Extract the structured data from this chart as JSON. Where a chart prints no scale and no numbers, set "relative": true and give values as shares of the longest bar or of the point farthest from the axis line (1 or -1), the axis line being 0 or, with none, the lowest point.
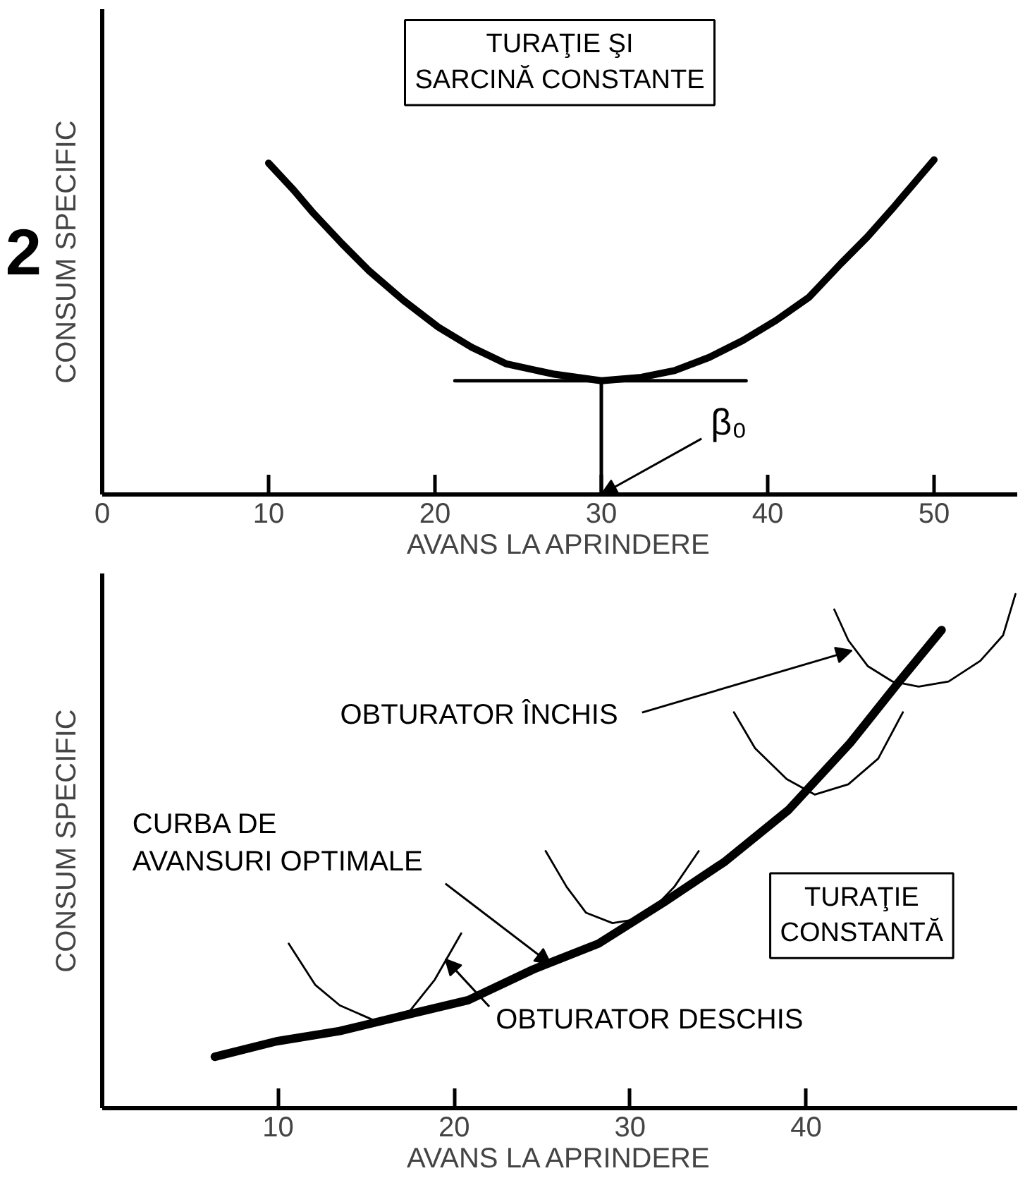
{
  "chart_data": [
    {
      "type": "line",
      "title": "TURAŢIE ŞI\nSARCINĂ CONSTANTE",
      "xlabel": "AVANS LA APRINDERE",
      "ylabel": "CONSUM SPECIFIC",
      "relative": true,
      "xlim": [
        0,
        55
      ],
      "xticks": [
        0,
        10,
        20,
        30,
        40,
        50
      ],
      "annotations": [
        "2"
      ],
      "ref_lines": [
        {
          "axis": "x",
          "value": 30,
          "label": "β₀"
        }
      ],
      "series": [
        {
          "color": "#000000",
          "x": [
            10,
            11.5,
            12.7,
            14.4,
            16,
            18.1,
            20.2,
            22.2,
            24.3,
            27.1,
            30,
            32.4,
            34.4,
            36.5,
            38.5,
            40.5,
            42.5,
            44.4,
            46,
            47.6,
            48.8,
            50
          ],
          "values": [
            0.99,
            0.91,
            0.84,
            0.75,
            0.67,
            0.58,
            0.5,
            0.44,
            0.39,
            0.36,
            0.34,
            0.35,
            0.37,
            0.41,
            0.46,
            0.52,
            0.59,
            0.69,
            0.77,
            0.86,
            0.93,
            1.0
          ]
        },
        {
          "color": "#000000",
          "x": [
            21.2,
            38.7
          ],
          "values": [
            0.34,
            0.34
          ]
        }
      ]
    },
    {
      "type": "line",
      "title": "TURAŢIE\nCONSTANTĂ",
      "xlabel": "AVANS LA APRINDERE",
      "ylabel": "CONSUM SPECIFIC",
      "relative": true,
      "xlim": [
        0,
        52
      ],
      "xticks": [
        10,
        20,
        30,
        40
      ],
      "annotations": [
        {
          "text": "OBTURATOR ÎNCHIS",
          "x": 42.6,
          "y": 0.89
        },
        {
          "text": "CURBA DE\nAVANSURI OPTIMALE",
          "x": 25.5,
          "y": 0.28
        },
        {
          "text": "OBTURATOR DESCHIS",
          "x": 19.5,
          "y": 0.29
        }
      ],
      "series": [
        {
          "color": "#000000",
          "x": [
            6.4,
            9.9,
            13.5,
            17.1,
            20.8,
            24.5,
            28.2,
            31.9,
            35.4,
            39,
            42.5,
            45.3,
            47.7
          ],
          "values": [
            0.1,
            0.13,
            0.15,
            0.18,
            0.21,
            0.27,
            0.32,
            0.4,
            0.48,
            0.58,
            0.71,
            0.83,
            0.93
          ]
        },
        {
          "color": "#000000",
          "x": [
            10.6,
            12.1,
            13.5,
            15.5,
            17.5,
            18.9,
            20.4
          ],
          "values": [
            0.32,
            0.24,
            0.2,
            0.17,
            0.19,
            0.25,
            0.34
          ]
        },
        {
          "color": "#000000",
          "x": [
            25.2,
            26.4,
            27.5,
            29,
            30.8,
            32.5,
            33.9
          ],
          "values": [
            0.5,
            0.43,
            0.38,
            0.36,
            0.37,
            0.43,
            0.5
          ]
        },
        {
          "color": "#000000",
          "x": [
            35.9,
            37.1,
            38.9,
            40.5,
            42.4,
            44.1,
            45.5
          ],
          "values": [
            0.77,
            0.7,
            0.64,
            0.61,
            0.63,
            0.68,
            0.77
          ]
        },
        {
          "color": "#000000",
          "x": [
            41.6,
            42.4,
            43.5,
            44.9,
            46.4,
            48.1,
            49.9,
            51.2,
            51.9
          ],
          "values": [
            0.97,
            0.91,
            0.86,
            0.83,
            0.82,
            0.83,
            0.87,
            0.92,
            1.0
          ]
        }
      ]
    }
  ]
}
